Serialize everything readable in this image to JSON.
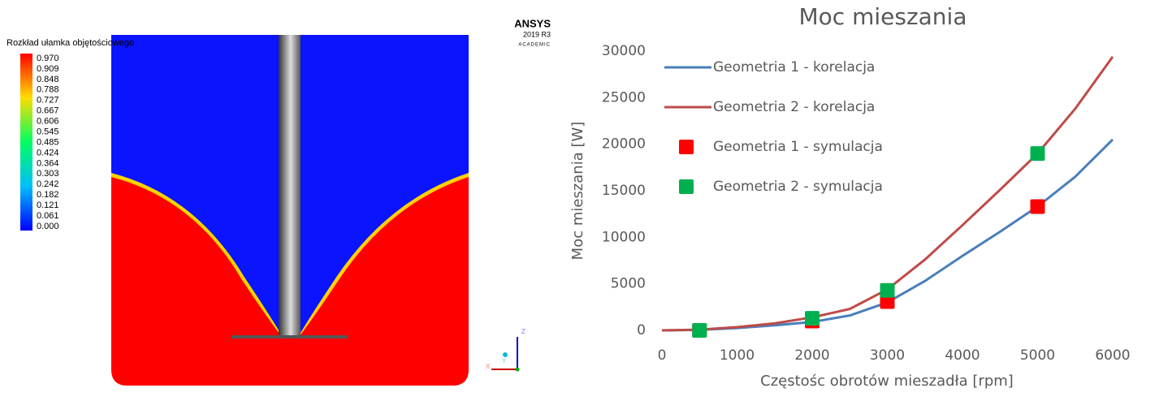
{
  "contour_legend": {
    "title": "Rozkład ułamka objętościowego",
    "labels": [
      "0.970",
      "0.909",
      "0.848",
      "0.788",
      "0.727",
      "0.667",
      "0.606",
      "0.545",
      "0.485",
      "0.424",
      "0.364",
      "0.303",
      "0.242",
      "0.182",
      "0.121",
      "0.061",
      "0.000"
    ]
  },
  "logo": {
    "name": "ANSYS",
    "version": "2019 R3",
    "edition": "ACADEMIC"
  },
  "triad": {
    "labels": [
      "Z",
      "Y",
      "X"
    ]
  },
  "chart_data": {
    "type": "line",
    "title": "Moc mieszania",
    "x_label": "Częstośc obrotów mieszadła [rpm]",
    "y_label": "Moc mieszania [W]",
    "xlim": [
      0,
      6000
    ],
    "xticks": [
      0,
      1000,
      2000,
      3000,
      4000,
      5000,
      6000
    ],
    "ylim": [
      0,
      30000
    ],
    "yticks": [
      0,
      5000,
      10000,
      15000,
      20000,
      25000,
      30000
    ],
    "grid": false,
    "legend": "upper-left",
    "series": [
      {
        "name": "Geometria 1 - korelacja",
        "color": "#4a7ebb",
        "mode": "line",
        "x": [
          0,
          500,
          1000,
          1500,
          2000,
          2500,
          3000,
          3500,
          4000,
          4500,
          5000,
          5500,
          6000
        ],
        "values": [
          0,
          50,
          250,
          550,
          900,
          1600,
          3000,
          5300,
          8000,
          10600,
          13300,
          16500,
          20500
        ]
      },
      {
        "name": "Geometria 2 - korelacja",
        "color": "#be4b48",
        "mode": "line",
        "x": [
          0,
          500,
          1000,
          1500,
          2000,
          2500,
          3000,
          3500,
          4000,
          4500,
          5000,
          5500,
          6000
        ],
        "values": [
          0,
          80,
          350,
          750,
          1400,
          2300,
          4400,
          7600,
          11300,
          15100,
          19000,
          23800,
          29400
        ]
      },
      {
        "name": "Geometria 1 - symulacja",
        "color": "#ff0000",
        "mode": "markers",
        "x": [
          500,
          2000,
          3000,
          5000
        ],
        "values": [
          0,
          1000,
          3100,
          13300
        ]
      },
      {
        "name": "Geometria 2 - symulacja",
        "color": "#00b050",
        "mode": "markers",
        "x": [
          500,
          2000,
          3000,
          5000
        ],
        "values": [
          0,
          1300,
          4300,
          19000
        ]
      }
    ]
  }
}
